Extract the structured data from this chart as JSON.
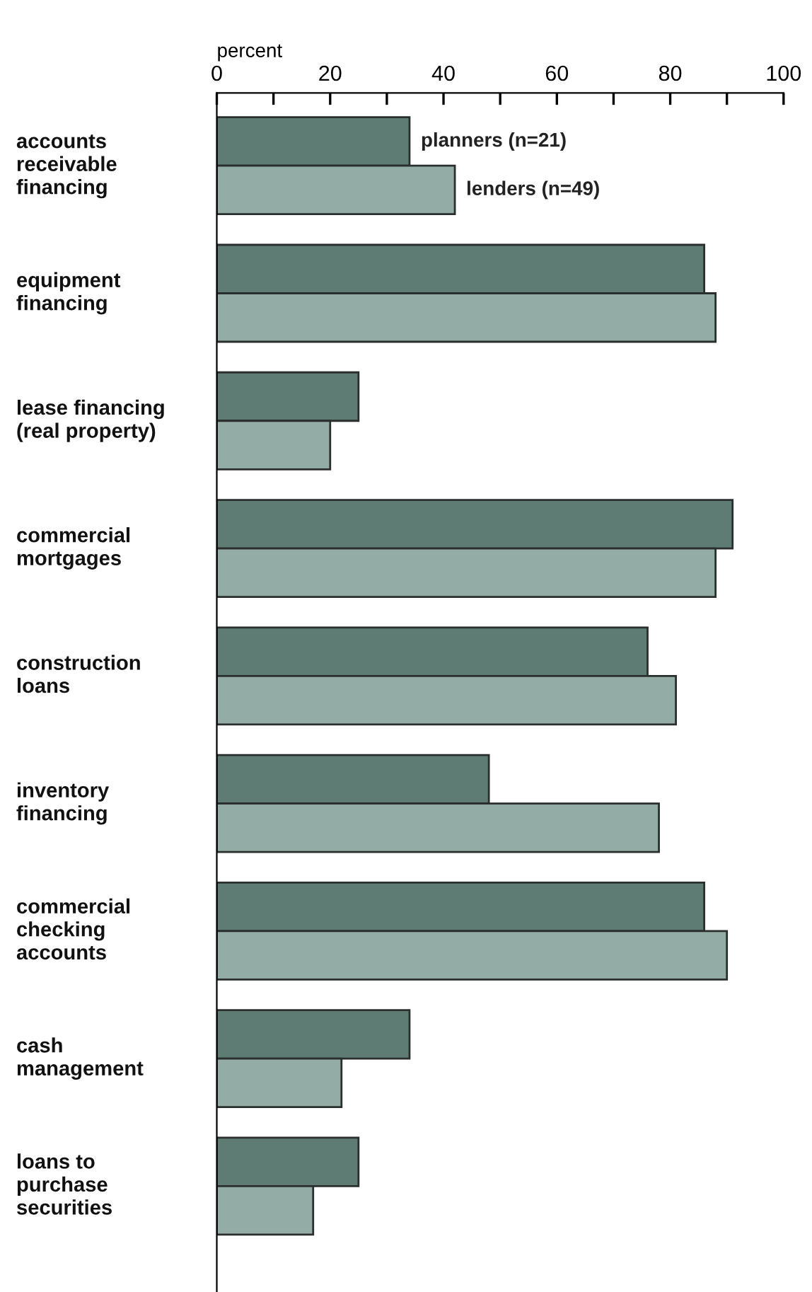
{
  "chart_data": {
    "type": "bar",
    "orientation": "horizontal",
    "xlabel": "percent",
    "categories": [
      "accounts\nreceivable\nfinancing",
      "equipment\nfinancing",
      "lease financing\n(real property)",
      "commercial\nmortgages",
      "construction\nloans",
      "inventory\nfinancing",
      "commercial\nchecking\naccounts",
      "cash\nmanagement",
      "loans to\npurchase\nsecurities"
    ],
    "series": [
      {
        "name": "planners (n=21)",
        "color": "#5e7b74",
        "values": [
          34,
          86,
          25,
          91,
          76,
          48,
          86,
          34,
          25
        ]
      },
      {
        "name": "lenders (n=49)",
        "color": "#93aca6",
        "values": [
          42,
          88,
          20,
          88,
          81,
          78,
          90,
          22,
          17
        ]
      }
    ],
    "xlim": [
      0,
      100
    ],
    "xticks": [
      0,
      {
        "value": 10,
        "label": null
      },
      20,
      {
        "value": 30,
        "label": null
      },
      40,
      {
        "value": 50,
        "label": null
      },
      60,
      {
        "value": 70,
        "label": null
      },
      80,
      {
        "value": 90,
        "label": null
      },
      100
    ],
    "grid": false,
    "legend": false
  }
}
